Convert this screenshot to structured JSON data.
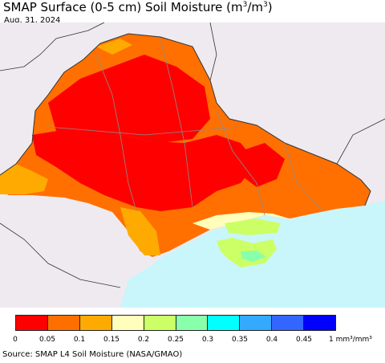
{
  "title": "SMAP Surface (0-5 cm) Soil Moisture (m",
  "title_sup1": "3",
  "title_mid": "/m",
  "title_sup2": "3",
  "title_end": ")",
  "date": "Aug. 31, 2024",
  "legend": {
    "colors": [
      "#ff0000",
      "#ff6f00",
      "#ffaa00",
      "#ffffbb",
      "#ccff66",
      "#88ffaa",
      "#00ffff",
      "#33aaff",
      "#3366ff",
      "#0000ff"
    ],
    "ticks": [
      "0",
      "0.05",
      "0.1",
      "0.15",
      "0.2",
      "0.25",
      "0.3",
      "0.35",
      "0.4",
      "0.45"
    ],
    "unit": "1 mm³/mm³"
  },
  "source": "Source: SMAP L4 Soil Moisture (NASA/GMAO)",
  "map_colors": {
    "land_outside": "#efeaf0",
    "sea": "#c8f6fa",
    "dry": "#ff0000",
    "medium": "#ff7000",
    "moist": "#ffaa00",
    "wet": "#ffffbb",
    "green": "#ccff66",
    "mint": "#88ffaa",
    "borders": "#8c8c8c"
  }
}
